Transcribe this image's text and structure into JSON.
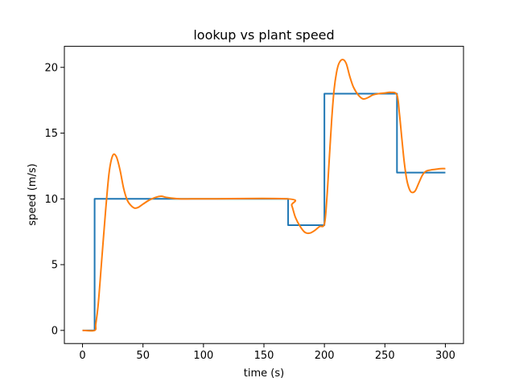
{
  "chart_data": {
    "type": "line",
    "title": "lookup vs plant speed",
    "xlabel": "time (s)",
    "ylabel": "speed (m/s)",
    "xlim": [
      -15,
      315
    ],
    "ylim": [
      -1,
      21.6
    ],
    "xticks": [
      0,
      50,
      100,
      150,
      200,
      250,
      300
    ],
    "yticks": [
      0,
      5,
      10,
      15,
      20
    ],
    "grid": false,
    "legend": "none",
    "series": [
      {
        "color": "#1f77b4",
        "style": "step",
        "x": [
          0,
          10,
          10,
          170,
          170,
          200,
          200,
          260,
          260,
          300
        ],
        "y": [
          0,
          0,
          10,
          10,
          8,
          8,
          18,
          18,
          12,
          12
        ]
      },
      {
        "color": "#ff7f0e",
        "style": "smooth",
        "x": [
          0,
          10,
          11,
          13,
          16,
          19,
          22,
          25,
          28,
          31,
          34,
          37,
          40,
          43,
          46,
          50,
          55,
          60,
          65,
          70,
          80,
          90,
          100,
          170,
          173,
          176,
          180,
          184,
          188,
          192,
          196,
          200,
          202,
          204,
          206,
          208,
          210,
          212,
          215,
          218,
          221,
          224,
          228,
          232,
          236,
          240,
          245,
          250,
          255,
          260,
          262,
          264,
          266,
          268,
          270,
          272,
          275,
          278,
          281,
          284,
          288,
          292,
          296,
          300
        ],
        "y": [
          0,
          0,
          0.5,
          2,
          5.5,
          9,
          12,
          13.3,
          13.2,
          12.2,
          10.8,
          9.9,
          9.5,
          9.3,
          9.35,
          9.6,
          9.9,
          10.1,
          10.2,
          10.1,
          10.0,
          10.0,
          10.0,
          10.0,
          9.5,
          8.6,
          7.9,
          7.45,
          7.4,
          7.6,
          7.9,
          8.1,
          10,
          13,
          16,
          18.3,
          19.6,
          20.3,
          20.6,
          20.3,
          19.3,
          18.5,
          17.9,
          17.6,
          17.7,
          17.9,
          18.0,
          18.05,
          18.1,
          17.9,
          16.5,
          14.6,
          12.8,
          11.5,
          10.8,
          10.5,
          10.6,
          11.2,
          11.8,
          12.1,
          12.2,
          12.25,
          12.3,
          12.3
        ]
      }
    ]
  }
}
